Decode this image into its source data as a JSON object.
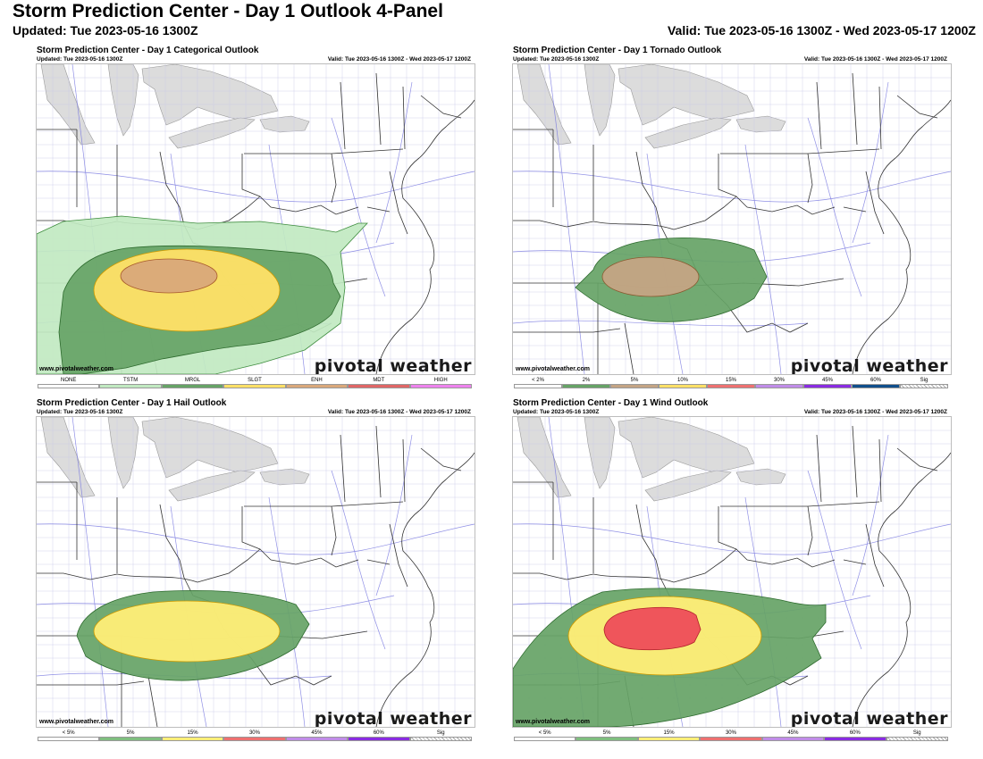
{
  "title": "Storm Prediction Center - Day 1 Outlook 4-Panel",
  "updated": "Updated: Tue 2023-05-16 1300Z",
  "valid": "Valid: Tue 2023-05-16 1300Z - Wed 2023-05-17 1200Z",
  "website": "www.pivotalweather.com",
  "brand": "pivotal weather",
  "panels": [
    {
      "id": "categorical",
      "title": "Storm Prediction Center - Day 1 Categorical Outlook",
      "updated": "Updated: Tue 2023-05-16 1300Z",
      "valid": "Valid: Tue 2023-05-16 1300Z - Wed 2023-05-17 1200Z",
      "legend": [
        {
          "label": "NONE",
          "color": "#ffffff"
        },
        {
          "label": "TSTM",
          "color": "#c1e9c1"
        },
        {
          "label": "MRGL",
          "color": "#66a366"
        },
        {
          "label": "SLGT",
          "color": "#ffe066"
        },
        {
          "label": "ENH",
          "color": "#d9a87a"
        },
        {
          "label": "MDT",
          "color": "#e06666"
        },
        {
          "label": "HIGH",
          "color": "#ee82ee"
        }
      ]
    },
    {
      "id": "tornado",
      "title": "Storm Prediction Center - Day 1 Tornado Outlook",
      "updated": "Updated: Tue 2023-05-16 1300Z",
      "valid": "Valid: Tue 2023-05-16 1300Z - Wed 2023-05-17 1200Z",
      "legend": [
        {
          "label": "< 2%",
          "color": "#ffffff"
        },
        {
          "label": "2%",
          "color": "#66a366"
        },
        {
          "label": "5%",
          "color": "#c4a484"
        },
        {
          "label": "10%",
          "color": "#ffe066"
        },
        {
          "label": "15%",
          "color": "#ee7070"
        },
        {
          "label": "30%",
          "color": "#c08ce8"
        },
        {
          "label": "45%",
          "color": "#8a2be2"
        },
        {
          "label": "60%",
          "color": "#104e8b"
        },
        {
          "label": "Sig",
          "color": "hatch"
        }
      ]
    },
    {
      "id": "hail",
      "title": "Storm Prediction Center - Day 1 Hail Outlook",
      "updated": "Updated: Tue 2023-05-16 1300Z",
      "valid": "Valid: Tue 2023-05-16 1300Z - Wed 2023-05-17 1200Z",
      "legend": [
        {
          "label": "< 5%",
          "color": "#ffffff"
        },
        {
          "label": "5%",
          "color": "#7fbf7f"
        },
        {
          "label": "15%",
          "color": "#ffee77"
        },
        {
          "label": "30%",
          "color": "#ee7070"
        },
        {
          "label": "45%",
          "color": "#c08ce8"
        },
        {
          "label": "60%",
          "color": "#8a2be2"
        },
        {
          "label": "Sig",
          "color": "hatch"
        }
      ]
    },
    {
      "id": "wind",
      "title": "Storm Prediction Center - Day 1 Wind Outlook",
      "updated": "Updated: Tue 2023-05-16 1300Z",
      "valid": "Valid: Tue 2023-05-16 1300Z - Wed 2023-05-17 1200Z",
      "legend": [
        {
          "label": "< 5%",
          "color": "#ffffff"
        },
        {
          "label": "5%",
          "color": "#7fbf7f"
        },
        {
          "label": "15%",
          "color": "#ffee77"
        },
        {
          "label": "30%",
          "color": "#ee7070"
        },
        {
          "label": "45%",
          "color": "#c08ce8"
        },
        {
          "label": "60%",
          "color": "#8a2be2"
        },
        {
          "label": "Sig",
          "color": "hatch"
        }
      ]
    }
  ]
}
